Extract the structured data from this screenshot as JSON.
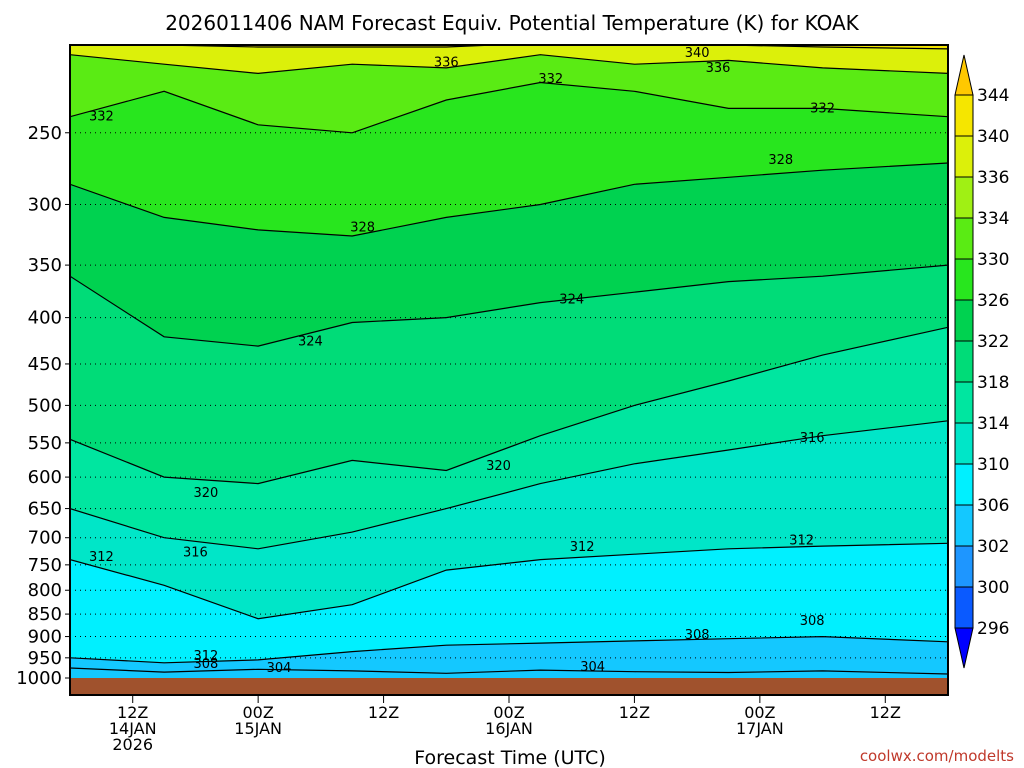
{
  "chart_data": {
    "type": "heatmap",
    "title": "2026011406 NAM Forecast Equiv. Potential Temperature (K) for KOAK",
    "xlabel": "Forecast Time (UTC)",
    "ylabel": "",
    "credit": "coolwx.com/modelts",
    "y_axis": {
      "scale": "log-pressure",
      "reversed": true,
      "range": [
        1000,
        200
      ],
      "ticks": [
        250,
        300,
        350,
        400,
        450,
        500,
        550,
        600,
        650,
        700,
        750,
        800,
        850,
        900,
        950,
        1000
      ],
      "gridlines": "dotted"
    },
    "x_axis": {
      "range_hours": [
        0,
        84
      ],
      "ticks": [
        {
          "hour": 6,
          "lines": [
            "12Z",
            "14JAN",
            "2026"
          ]
        },
        {
          "hour": 18,
          "lines": [
            "00Z",
            "15JAN"
          ]
        },
        {
          "hour": 30,
          "lines": [
            "12Z"
          ]
        },
        {
          "hour": 42,
          "lines": [
            "00Z",
            "16JAN"
          ]
        },
        {
          "hour": 54,
          "lines": [
            "12Z"
          ]
        },
        {
          "hour": 66,
          "lines": [
            "00Z",
            "17JAN"
          ]
        },
        {
          "hour": 78,
          "lines": [
            "12Z"
          ]
        }
      ]
    },
    "colorbar": {
      "levels": [
        296,
        300,
        302,
        306,
        310,
        314,
        318,
        322,
        326,
        330,
        334,
        336,
        340,
        344
      ],
      "colors": [
        "#0000ff",
        "#0a5aff",
        "#1e96ff",
        "#14c8ff",
        "#00f0ff",
        "#00e6c8",
        "#00e6a0",
        "#00dc78",
        "#00d250",
        "#28e61e",
        "#5aeb14",
        "#a0f014",
        "#dcf00a",
        "#f5e600",
        "#ffc800"
      ],
      "extend": "both"
    },
    "contours": [
      {
        "value": 304,
        "pressures": [
          975,
          985,
          978,
          982,
          988,
          980,
          984,
          986,
          982,
          990
        ]
      },
      {
        "value": 308,
        "pressures": [
          950,
          962,
          955,
          935,
          920,
          915,
          910,
          905,
          900,
          912
        ]
      },
      {
        "value": 312,
        "pressures": [
          740,
          790,
          860,
          830,
          760,
          740,
          730,
          720,
          715,
          710
        ]
      },
      {
        "value": 316,
        "pressures": [
          650,
          700,
          720,
          690,
          650,
          610,
          580,
          560,
          540,
          520
        ]
      },
      {
        "value": 320,
        "pressures": [
          545,
          600,
          610,
          575,
          590,
          540,
          500,
          470,
          440,
          410
        ]
      },
      {
        "value": 324,
        "pressures": [
          360,
          420,
          430,
          405,
          400,
          385,
          375,
          365,
          360,
          350
        ]
      },
      {
        "value": 328,
        "pressures": [
          285,
          310,
          320,
          325,
          310,
          300,
          285,
          280,
          275,
          270
        ]
      },
      {
        "value": 332,
        "pressures": [
          240,
          225,
          245,
          250,
          230,
          220,
          225,
          235,
          235,
          240
        ]
      },
      {
        "value": 336,
        "pressures": [
          205,
          210,
          215,
          210,
          212,
          205,
          210,
          208,
          212,
          215
        ]
      },
      {
        "value": 340,
        "pressures": [
          200,
          200,
          201,
          201,
          201,
          199,
          200,
          200,
          201,
          202
        ]
      }
    ],
    "contour_hours": [
      0,
      9,
      18,
      27,
      36,
      45,
      54,
      63,
      72,
      84
    ],
    "contour_labels": [
      {
        "text": "340",
        "value": 340,
        "hour": 60,
        "pressure": 204
      },
      {
        "text": "336",
        "value": 336,
        "hour": 36,
        "pressure": 209
      },
      {
        "text": "336",
        "value": 336,
        "hour": 62,
        "pressure": 212
      },
      {
        "text": "332",
        "value": 332,
        "hour": 46,
        "pressure": 218
      },
      {
        "text": "332",
        "value": 332,
        "hour": 3,
        "pressure": 240
      },
      {
        "text": "332",
        "value": 332,
        "hour": 72,
        "pressure": 235
      },
      {
        "text": "328",
        "value": 328,
        "hour": 68,
        "pressure": 268
      },
      {
        "text": "328",
        "value": 328,
        "hour": 28,
        "pressure": 318
      },
      {
        "text": "324",
        "value": 324,
        "hour": 48,
        "pressure": 382
      },
      {
        "text": "324",
        "value": 324,
        "hour": 23,
        "pressure": 425
      },
      {
        "text": "320",
        "value": 320,
        "hour": 41,
        "pressure": 583
      },
      {
        "text": "320",
        "value": 320,
        "hour": 13,
        "pressure": 625
      },
      {
        "text": "316",
        "value": 316,
        "hour": 71,
        "pressure": 543
      },
      {
        "text": "316",
        "value": 316,
        "hour": 12,
        "pressure": 727
      },
      {
        "text": "312",
        "value": 312,
        "hour": 3,
        "pressure": 735
      },
      {
        "text": "312",
        "value": 312,
        "hour": 49,
        "pressure": 717
      },
      {
        "text": "312",
        "value": 312,
        "hour": 70,
        "pressure": 705
      },
      {
        "text": "308",
        "value": 308,
        "hour": 71,
        "pressure": 865
      },
      {
        "text": "308",
        "value": 308,
        "hour": 60,
        "pressure": 897
      },
      {
        "text": "312",
        "value": 312,
        "hour": 13,
        "pressure": 945
      },
      {
        "text": "308",
        "value": 308,
        "hour": 13,
        "pressure": 965
      },
      {
        "text": "304",
        "value": 304,
        "hour": 20,
        "pressure": 975
      },
      {
        "text": "304",
        "value": 304,
        "hour": 50,
        "pressure": 972
      }
    ],
    "ground_color": "#a0522d",
    "grid": true
  }
}
